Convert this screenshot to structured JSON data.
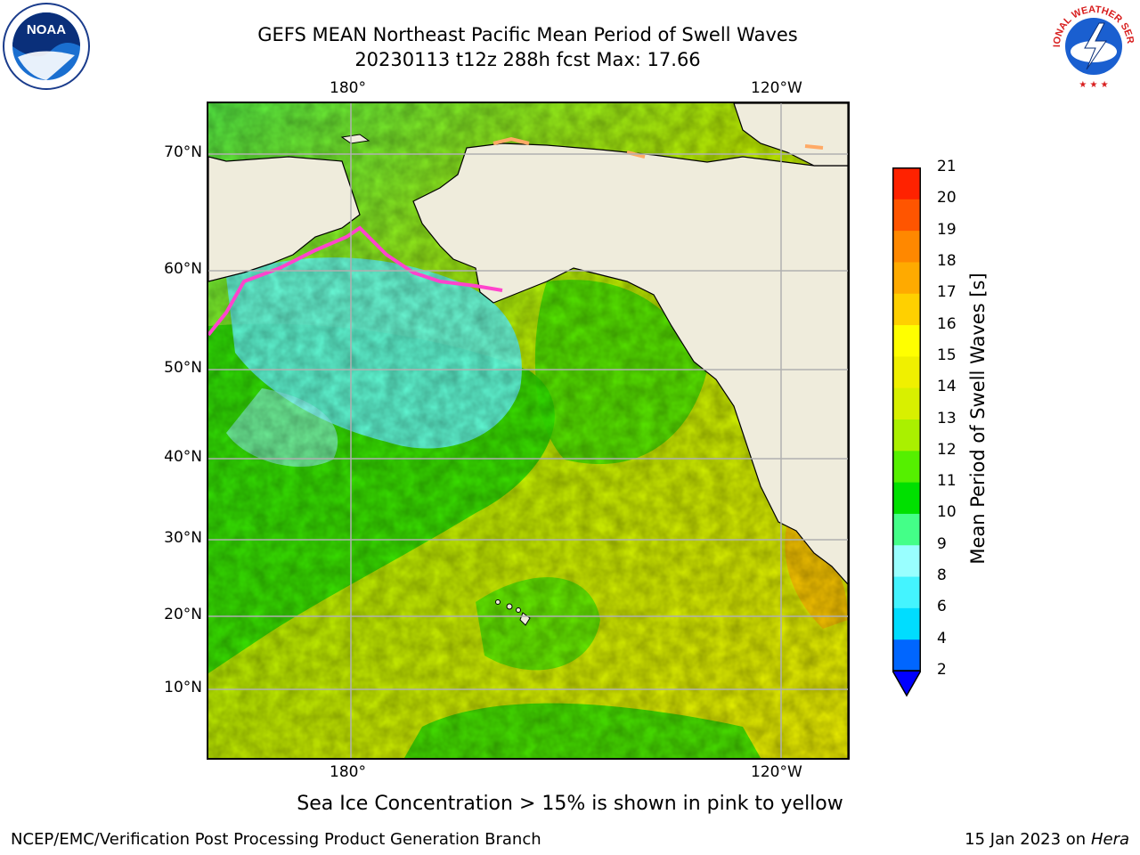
{
  "title": {
    "line1": "GEFS MEAN Northeast Pacific Mean Period of Swell Waves",
    "line2": "20230113 t12z 288h fcst   Max: 17.66"
  },
  "axes": {
    "lon_top": [
      "180°",
      "120°W"
    ],
    "lon_bottom": [
      "180°",
      "120°W"
    ],
    "lat": [
      "70°N",
      "60°N",
      "50°N",
      "40°N",
      "30°N",
      "20°N",
      "10°N"
    ]
  },
  "colorbar": {
    "label": "Mean Period of Swell Waves [s]",
    "ticks": [
      "2",
      "4",
      "6",
      "8",
      "9",
      "10",
      "11",
      "12",
      "13",
      "14",
      "15",
      "16",
      "17",
      "18",
      "19",
      "20",
      "21"
    ],
    "colors": [
      "#0066ff",
      "#00ddff",
      "#44f4ff",
      "#99ffff",
      "#44ff88",
      "#00e000",
      "#55f000",
      "#aaf000",
      "#d8f000",
      "#f0f000",
      "#ffff00",
      "#ffd000",
      "#ffaa00",
      "#ff8800",
      "#ff5500",
      "#ff2200",
      "#ff0000"
    ],
    "under_color": "#0000ff"
  },
  "colors": {
    "land": "#efecdc",
    "grid": "#b0b0b0",
    "sea_ice_edge": "#ff44cc"
  },
  "logos": {
    "noaa": "NOAA",
    "nws": "NATIONAL WEATHER SERVICE"
  },
  "note": "Sea Ice Concentration > 15% is shown in pink to yellow",
  "footer": {
    "left": "NCEP/EMC/Verification Post Processing Product Generation Branch",
    "date": "15 Jan 2023 on ",
    "machine": "Hera"
  }
}
